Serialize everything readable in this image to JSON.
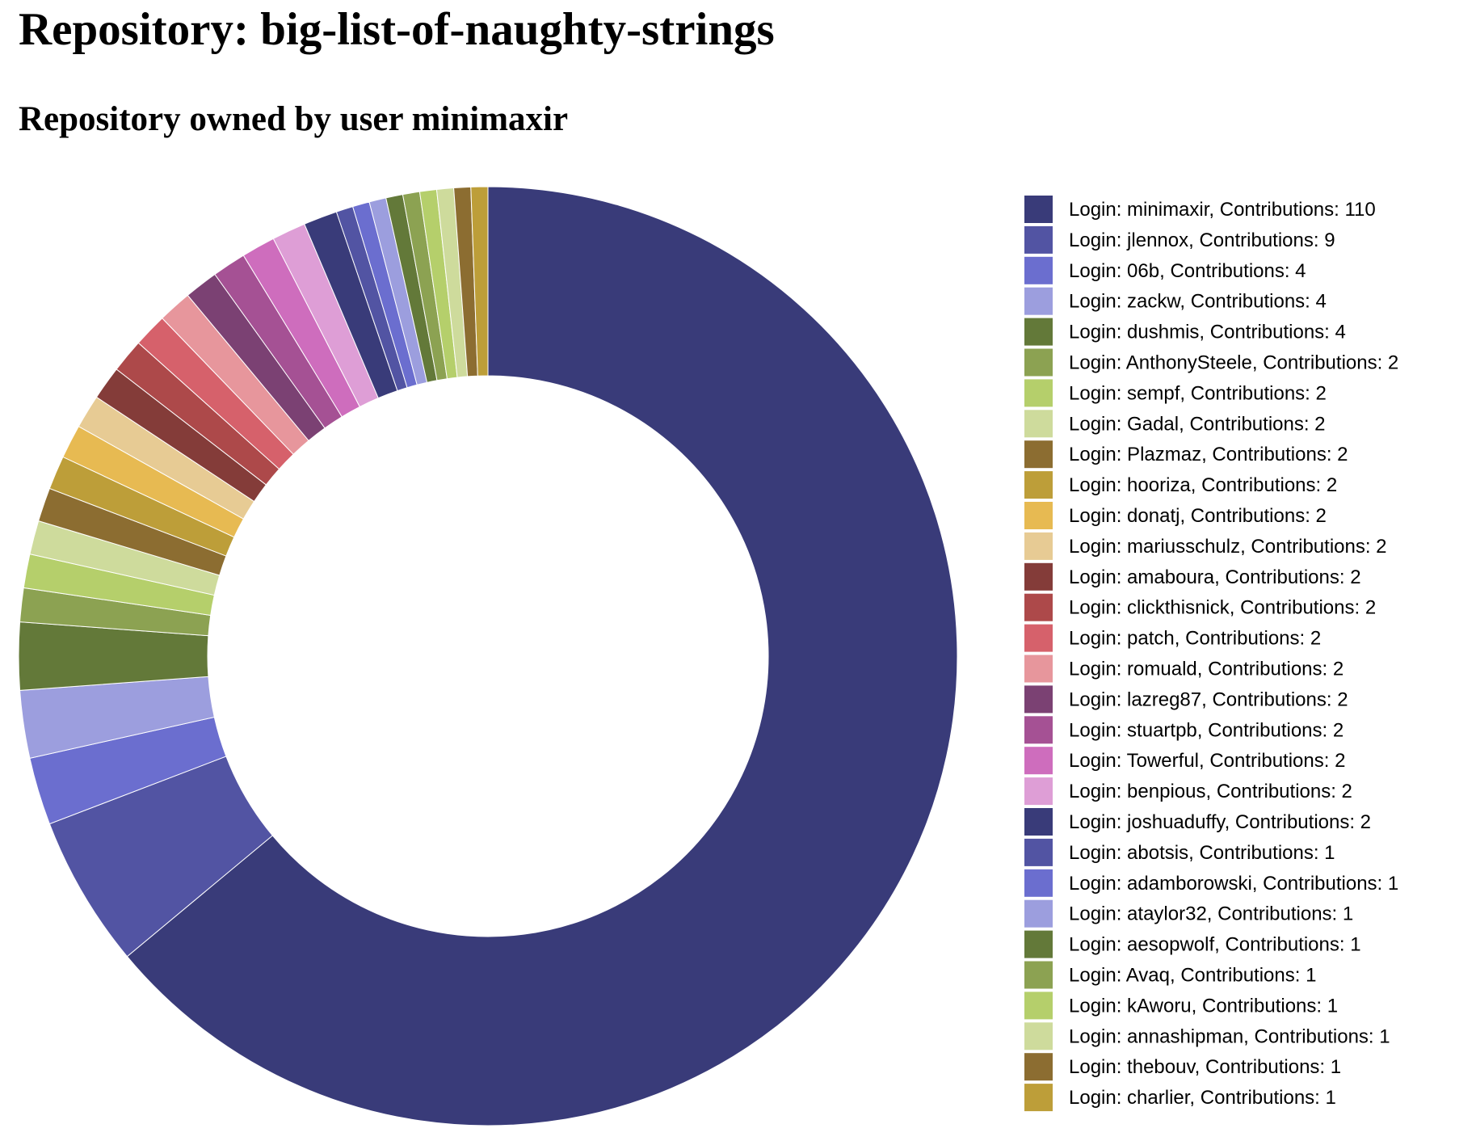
{
  "page": {
    "title": "Repository: big-list-of-naughty-strings",
    "subtitle": "Repository owned by user minimaxir"
  },
  "chart_data": {
    "type": "pie",
    "style": "donut",
    "legend_position": "right",
    "colors": [
      "#393b79",
      "#5254a3",
      "#6b6ecf",
      "#9c9ede",
      "#637939",
      "#8ca252",
      "#b5cf6b",
      "#cedb9c",
      "#8c6d31",
      "#bd9e39",
      "#e7ba52",
      "#e7cb94",
      "#843c39",
      "#ad494a",
      "#d6616b",
      "#e7969c",
      "#7b4173",
      "#a55194",
      "#ce6dbd",
      "#de9ed6"
    ],
    "categories": [
      "minimaxir",
      "jlennox",
      "06b",
      "zackw",
      "dushmis",
      "AnthonySteele",
      "sempf",
      "Gadal",
      "Plazmaz",
      "hooriza",
      "donatj",
      "mariusschulz",
      "amaboura",
      "clickthisnick",
      "patch",
      "romuald",
      "lazreg87",
      "stuartpb",
      "Towerful",
      "benpious",
      "joshuaduffy",
      "abotsis",
      "adamborowski",
      "ataylor32",
      "aesopwolf",
      "Avaq",
      "kAworu",
      "annashipman",
      "thebouv",
      "charlier"
    ],
    "values": [
      110,
      9,
      4,
      4,
      4,
      2,
      2,
      2,
      2,
      2,
      2,
      2,
      2,
      2,
      2,
      2,
      2,
      2,
      2,
      2,
      2,
      1,
      1,
      1,
      1,
      1,
      1,
      1,
      1,
      1
    ],
    "legend": [
      "Login: minimaxir, Contributions: 110",
      "Login: jlennox, Contributions: 9",
      "Login: 06b, Contributions: 4",
      "Login: zackw, Contributions: 4",
      "Login: dushmis, Contributions: 4",
      "Login: AnthonySteele, Contributions: 2",
      "Login: sempf, Contributions: 2",
      "Login: Gadal, Contributions: 2",
      "Login: Plazmaz, Contributions: 2",
      "Login: hooriza, Contributions: 2",
      "Login: donatj, Contributions: 2",
      "Login: mariusschulz, Contributions: 2",
      "Login: amaboura, Contributions: 2",
      "Login: clickthisnick, Contributions: 2",
      "Login: patch, Contributions: 2",
      "Login: romuald, Contributions: 2",
      "Login: lazreg87, Contributions: 2",
      "Login: stuartpb, Contributions: 2",
      "Login: Towerful, Contributions: 2",
      "Login: benpious, Contributions: 2",
      "Login: joshuaduffy, Contributions: 2",
      "Login: abotsis, Contributions: 1",
      "Login: adamborowski, Contributions: 1",
      "Login: ataylor32, Contributions: 1",
      "Login: aesopwolf, Contributions: 1",
      "Login: Avaq, Contributions: 1",
      "Login: kAworu, Contributions: 1",
      "Login: annashipman, Contributions: 1",
      "Login: thebouv, Contributions: 1",
      "Login: charlier, Contributions: 1"
    ]
  }
}
